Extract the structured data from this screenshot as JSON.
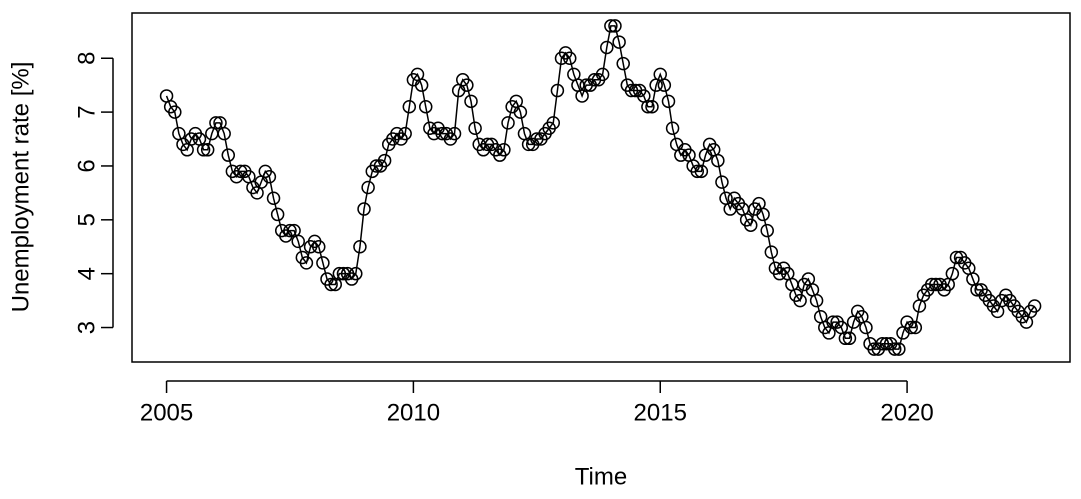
{
  "chart_data": {
    "type": "line",
    "xlabel": "Time",
    "ylabel": "Unemployment rate [%]",
    "xlim": [
      2004.3,
      2023.3
    ],
    "ylim": [
      2.36,
      8.84
    ],
    "xticks": [
      2005,
      2010,
      2015,
      2020
    ],
    "yticks": [
      3,
      4,
      5,
      6,
      7,
      8
    ],
    "color": "#000000",
    "markers": true,
    "x": [
      2005,
      2005.083,
      2005.167,
      2005.25,
      2005.333,
      2005.417,
      2005.5,
      2005.583,
      2005.667,
      2005.75,
      2005.833,
      2005.917,
      2006,
      2006.083,
      2006.167,
      2006.25,
      2006.333,
      2006.417,
      2006.5,
      2006.583,
      2006.667,
      2006.75,
      2006.833,
      2006.917,
      2007,
      2007.083,
      2007.167,
      2007.25,
      2007.333,
      2007.417,
      2007.5,
      2007.583,
      2007.667,
      2007.75,
      2007.833,
      2007.917,
      2008,
      2008.083,
      2008.167,
      2008.25,
      2008.333,
      2008.417,
      2008.5,
      2008.583,
      2008.667,
      2008.75,
      2008.833,
      2008.917,
      2009,
      2009.083,
      2009.167,
      2009.25,
      2009.333,
      2009.417,
      2009.5,
      2009.583,
      2009.667,
      2009.75,
      2009.833,
      2009.917,
      2010,
      2010.083,
      2010.167,
      2010.25,
      2010.333,
      2010.417,
      2010.5,
      2010.583,
      2010.667,
      2010.75,
      2010.833,
      2010.917,
      2011,
      2011.083,
      2011.167,
      2011.25,
      2011.333,
      2011.417,
      2011.5,
      2011.583,
      2011.667,
      2011.75,
      2011.833,
      2011.917,
      2012,
      2012.083,
      2012.167,
      2012.25,
      2012.333,
      2012.417,
      2012.5,
      2012.583,
      2012.667,
      2012.75,
      2012.833,
      2012.917,
      2013,
      2013.083,
      2013.167,
      2013.25,
      2013.333,
      2013.417,
      2013.5,
      2013.583,
      2013.667,
      2013.75,
      2013.833,
      2013.917,
      2014,
      2014.083,
      2014.167,
      2014.25,
      2014.333,
      2014.417,
      2014.5,
      2014.583,
      2014.667,
      2014.75,
      2014.833,
      2014.917,
      2015,
      2015.083,
      2015.167,
      2015.25,
      2015.333,
      2015.417,
      2015.5,
      2015.583,
      2015.667,
      2015.75,
      2015.833,
      2015.917,
      2016,
      2016.083,
      2016.167,
      2016.25,
      2016.333,
      2016.417,
      2016.5,
      2016.583,
      2016.667,
      2016.75,
      2016.833,
      2016.917,
      2017,
      2017.083,
      2017.167,
      2017.25,
      2017.333,
      2017.417,
      2017.5,
      2017.583,
      2017.667,
      2017.75,
      2017.833,
      2017.917,
      2018,
      2018.083,
      2018.167,
      2018.25,
      2018.333,
      2018.417,
      2018.5,
      2018.583,
      2018.667,
      2018.75,
      2018.833,
      2018.917,
      2019,
      2019.083,
      2019.167,
      2019.25,
      2019.333,
      2019.417,
      2019.5,
      2019.583,
      2019.667,
      2019.75,
      2019.833,
      2019.917,
      2020,
      2020.083,
      2020.167,
      2020.25,
      2020.333,
      2020.417,
      2020.5,
      2020.583,
      2020.667,
      2020.75,
      2020.833,
      2020.917,
      2021,
      2021.083,
      2021.167,
      2021.25,
      2021.333,
      2021.417,
      2021.5,
      2021.583,
      2021.667,
      2021.75,
      2021.833,
      2021.917,
      2022,
      2022.083,
      2022.167,
      2022.25,
      2022.333,
      2022.417,
      2022.5,
      2022.583
    ],
    "values": [
      7.3,
      7.1,
      7.0,
      6.6,
      6.4,
      6.3,
      6.5,
      6.6,
      6.5,
      6.3,
      6.3,
      6.6,
      6.8,
      6.8,
      6.6,
      6.2,
      5.9,
      5.8,
      5.9,
      5.9,
      5.8,
      5.6,
      5.5,
      5.7,
      5.9,
      5.8,
      5.4,
      5.1,
      4.8,
      4.7,
      4.8,
      4.8,
      4.6,
      4.3,
      4.2,
      4.5,
      4.6,
      4.5,
      4.2,
      3.9,
      3.8,
      3.8,
      4.0,
      4.0,
      4.0,
      3.9,
      4.0,
      4.5,
      5.2,
      5.6,
      5.9,
      6.0,
      6.0,
      6.1,
      6.4,
      6.5,
      6.6,
      6.5,
      6.6,
      7.1,
      7.6,
      7.7,
      7.5,
      7.1,
      6.7,
      6.6,
      6.7,
      6.6,
      6.6,
      6.5,
      6.6,
      7.4,
      7.6,
      7.5,
      7.2,
      6.7,
      6.4,
      6.3,
      6.4,
      6.4,
      6.3,
      6.2,
      6.3,
      6.8,
      7.1,
      7.2,
      7.0,
      6.6,
      6.4,
      6.4,
      6.5,
      6.5,
      6.6,
      6.7,
      6.8,
      7.4,
      8.0,
      8.1,
      8.0,
      7.7,
      7.5,
      7.3,
      7.5,
      7.5,
      7.6,
      7.6,
      7.7,
      8.2,
      8.6,
      8.6,
      8.3,
      7.9,
      7.5,
      7.4,
      7.4,
      7.4,
      7.3,
      7.1,
      7.1,
      7.5,
      7.7,
      7.5,
      7.2,
      6.7,
      6.4,
      6.2,
      6.3,
      6.2,
      6.0,
      5.9,
      5.9,
      6.2,
      6.4,
      6.3,
      6.1,
      5.7,
      5.4,
      5.2,
      5.4,
      5.3,
      5.2,
      5.0,
      4.9,
      5.2,
      5.3,
      5.1,
      4.8,
      4.4,
      4.1,
      4.0,
      4.1,
      4.0,
      3.8,
      3.6,
      3.5,
      3.8,
      3.9,
      3.7,
      3.5,
      3.2,
      3.0,
      2.9,
      3.1,
      3.1,
      3.0,
      2.8,
      2.8,
      3.1,
      3.3,
      3.2,
      3.0,
      2.7,
      2.6,
      2.6,
      2.7,
      2.7,
      2.7,
      2.6,
      2.6,
      2.9,
      3.1,
      3.0,
      3.0,
      3.4,
      3.6,
      3.7,
      3.8,
      3.8,
      3.8,
      3.7,
      3.8,
      4.0,
      4.3,
      4.3,
      4.2,
      4.1,
      3.9,
      3.7,
      3.7,
      3.6,
      3.5,
      3.4,
      3.3,
      3.5,
      3.6,
      3.5,
      3.4,
      3.3,
      3.2,
      3.1,
      3.3,
      3.4
    ]
  }
}
